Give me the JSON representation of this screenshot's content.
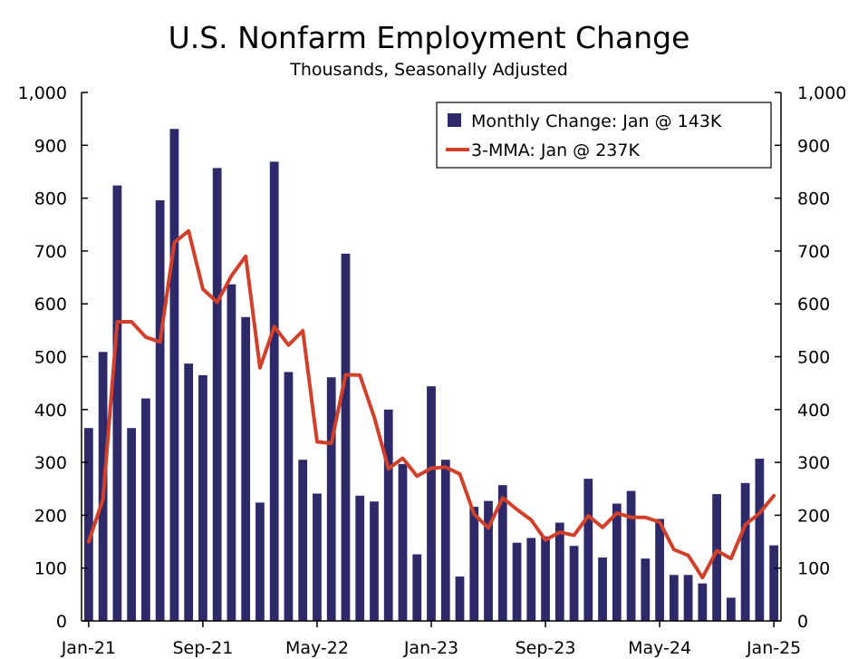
{
  "chart_data": {
    "type": "bar",
    "title": "U.S. Nonfarm Employment Change",
    "subtitle": "Thousands, Seasonally Adjusted",
    "xlabel": "",
    "ylabel": "",
    "ylim": [
      0,
      1000
    ],
    "y_ticks": [
      "0",
      "100",
      "200",
      "300",
      "400",
      "500",
      "600",
      "700",
      "800",
      "900",
      "1,000"
    ],
    "x_tick_labels": [
      "Jan-21",
      "Sep-21",
      "May-22",
      "Jan-23",
      "Sep-23",
      "May-24",
      "Jan-25"
    ],
    "x_tick_months": [
      0,
      8,
      16,
      24,
      32,
      40,
      48
    ],
    "grid": false,
    "legend_position": "top-right",
    "categories": [
      "Jan-21",
      "Feb-21",
      "Mar-21",
      "Apr-21",
      "May-21",
      "Jun-21",
      "Jul-21",
      "Aug-21",
      "Sep-21",
      "Oct-21",
      "Nov-21",
      "Dec-21",
      "Jan-22",
      "Feb-22",
      "Mar-22",
      "Apr-22",
      "May-22",
      "Jun-22",
      "Jul-22",
      "Aug-22",
      "Sep-22",
      "Oct-22",
      "Nov-22",
      "Dec-22",
      "Jan-23",
      "Feb-23",
      "Mar-23",
      "Apr-23",
      "May-23",
      "Jun-23",
      "Jul-23",
      "Aug-23",
      "Sep-23",
      "Oct-23",
      "Nov-23",
      "Dec-23",
      "Jan-24",
      "Feb-24",
      "Mar-24",
      "Apr-24",
      "May-24",
      "Jun-24",
      "Jul-24",
      "Aug-24",
      "Sep-24",
      "Oct-24",
      "Nov-24",
      "Dec-24",
      "Jan-25"
    ],
    "series": [
      {
        "name": "Monthly Change: Jan @ 143K",
        "type": "bar",
        "color": "#2e2a6a",
        "values": [
          365,
          509,
          824,
          365,
          421,
          796,
          931,
          487,
          465,
          857,
          637,
          575,
          224,
          869,
          471,
          305,
          241,
          461,
          695,
          237,
          226,
          400,
          297,
          126,
          444,
          305,
          84,
          216,
          227,
          257,
          148,
          157,
          160,
          186,
          142,
          269,
          120,
          222,
          246,
          118,
          193,
          87,
          87,
          71,
          240,
          44,
          261,
          307,
          143
        ]
      },
      {
        "name": "3-MMA: Jan @ 237K",
        "type": "line",
        "color": "#d0402a",
        "values": [
          150,
          230,
          566,
          566,
          537,
          528,
          716,
          738,
          628,
          603,
          653,
          690,
          479,
          557,
          522,
          549,
          339,
          336,
          466,
          465,
          386,
          288,
          308,
          274,
          289,
          291,
          278,
          202,
          176,
          233,
          211,
          191,
          153,
          168,
          162,
          199,
          177,
          204,
          196,
          196,
          187,
          135,
          124,
          82,
          133,
          118,
          182,
          204,
          237
        ]
      }
    ]
  }
}
